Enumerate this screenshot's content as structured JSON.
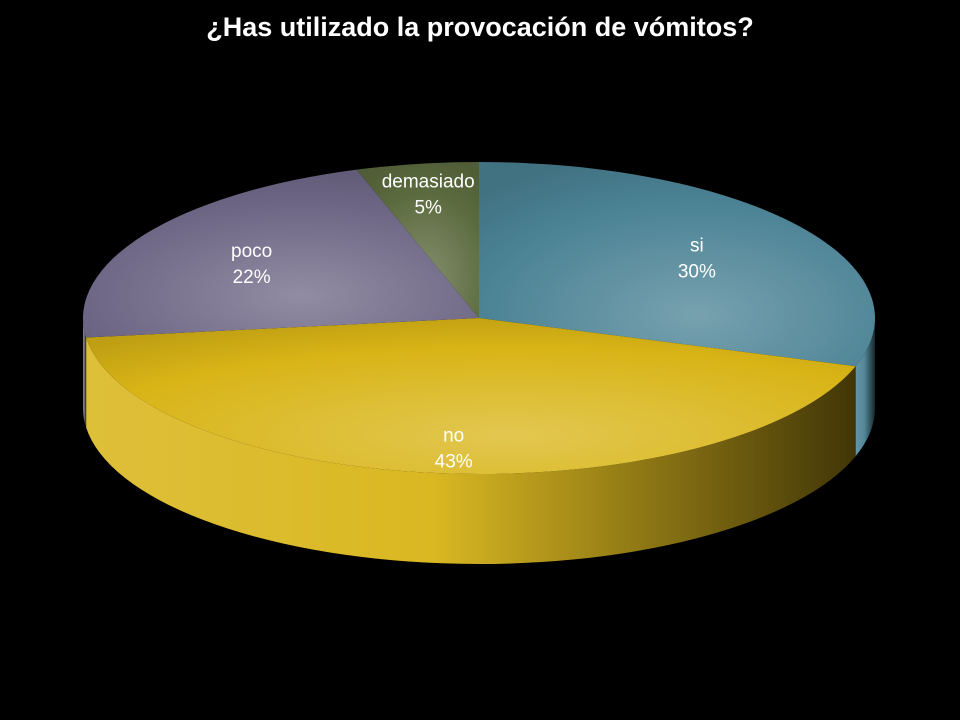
{
  "chart_data": {
    "type": "pie",
    "title": "¿Has utilizado la provocación de vómitos?",
    "three_d": true,
    "legend": "none",
    "slices": [
      {
        "label": "si",
        "value": 30,
        "value_label": "30%",
        "color": "#4a8294",
        "label_color": "#ffffff"
      },
      {
        "label": "no",
        "value": 43,
        "value_label": "43%",
        "color": "#d8b416",
        "label_color": "#ffffff"
      },
      {
        "label": "poco",
        "value": 22,
        "value_label": "22%",
        "color": "#6c6584",
        "label_color": "#ffffff"
      },
      {
        "label": "demasiado",
        "value": 5,
        "value_label": "5%",
        "color": "#5b6a3e",
        "label_color": "#ffffff"
      }
    ]
  }
}
